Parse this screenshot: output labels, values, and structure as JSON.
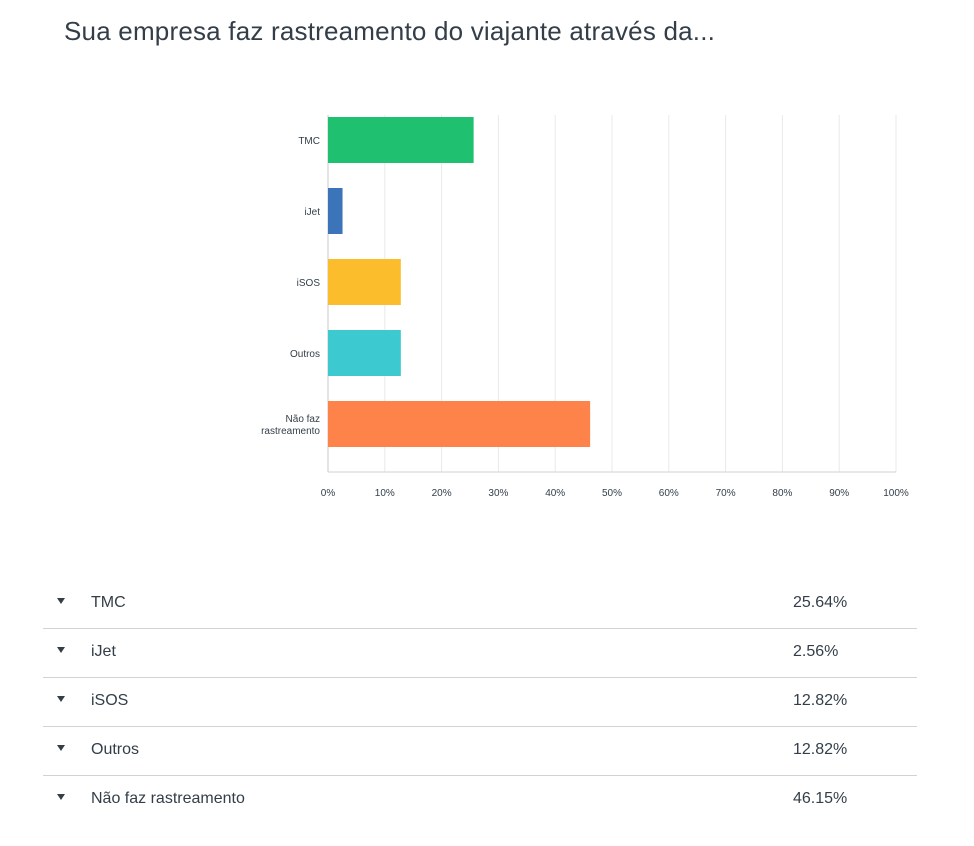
{
  "title": "Sua empresa faz rastreamento do viajante através da...",
  "chart_data": {
    "type": "bar",
    "orientation": "horizontal",
    "categories": [
      "TMC",
      "iJet",
      "iSOS",
      "Outros",
      "Não faz rastreamento"
    ],
    "category_lines": [
      [
        "TMC"
      ],
      [
        "iJet"
      ],
      [
        "iSOS"
      ],
      [
        "Outros"
      ],
      [
        "Não faz",
        "rastreamento"
      ]
    ],
    "values": [
      25.64,
      2.56,
      12.82,
      12.82,
      46.15
    ],
    "colors": [
      "#20c071",
      "#3b74b8",
      "#fbbd2b",
      "#3cc9d0",
      "#fe834b"
    ],
    "xlim": [
      0,
      100
    ],
    "x_ticks": [
      0,
      10,
      20,
      30,
      40,
      50,
      60,
      70,
      80,
      90,
      100
    ],
    "x_tick_labels": [
      "0%",
      "10%",
      "20%",
      "30%",
      "40%",
      "50%",
      "60%",
      "70%",
      "80%",
      "90%",
      "100%"
    ],
    "grid": true
  },
  "table": {
    "rows": [
      {
        "label": "TMC",
        "value": "25.64%"
      },
      {
        "label": "iJet",
        "value": "2.56%"
      },
      {
        "label": "iSOS",
        "value": "12.82%"
      },
      {
        "label": "Outros",
        "value": "12.82%"
      },
      {
        "label": "Não faz rastreamento",
        "value": "46.15%"
      }
    ]
  }
}
